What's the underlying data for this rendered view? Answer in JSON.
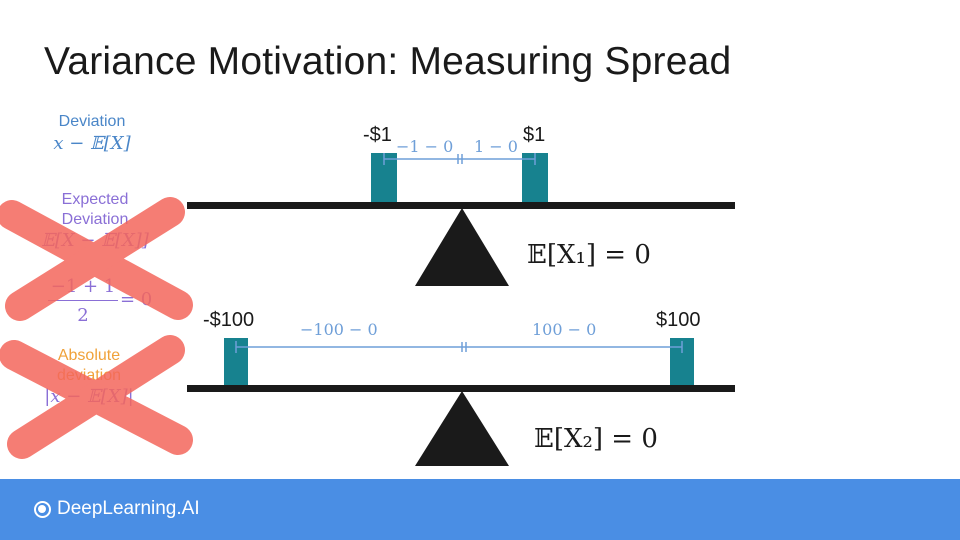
{
  "title": "Variance Motivation: Measuring Spread",
  "sidebar": {
    "deviation_label": "Deviation",
    "deviation_formula": "x − 𝔼[X]",
    "expected_label_1": "Expected",
    "expected_label_2": "Deviation",
    "expected_formula": "𝔼[X − 𝔼[X]]",
    "fraction_numerator": "−1 + 1",
    "fraction_denominator": "2",
    "fraction_result": "= 0",
    "absolute_label_1": "Absolute",
    "absolute_label_2": "deviation",
    "absolute_formula": "|x − 𝔼[X]|"
  },
  "seesaw1": {
    "left_value": "-$1",
    "right_value": "$1",
    "left_distance": "−1 − 0",
    "right_distance": "1 − 0",
    "expectation": "𝔼[X₁] = 0"
  },
  "seesaw2": {
    "left_value": "-$100",
    "right_value": "$100",
    "left_distance": "−100 − 0",
    "right_distance": "100 − 0",
    "expectation": "𝔼[X₂] = 0"
  },
  "colors": {
    "weight": "#17828f",
    "beam": "#1a1a1a",
    "distance": "#6f9fd8",
    "cross": "#f4675c",
    "footer": "#4a8ee4"
  },
  "footer": {
    "brand": "DeepLearning.AI",
    "logo_icon": "deeplearning-logo-icon"
  }
}
